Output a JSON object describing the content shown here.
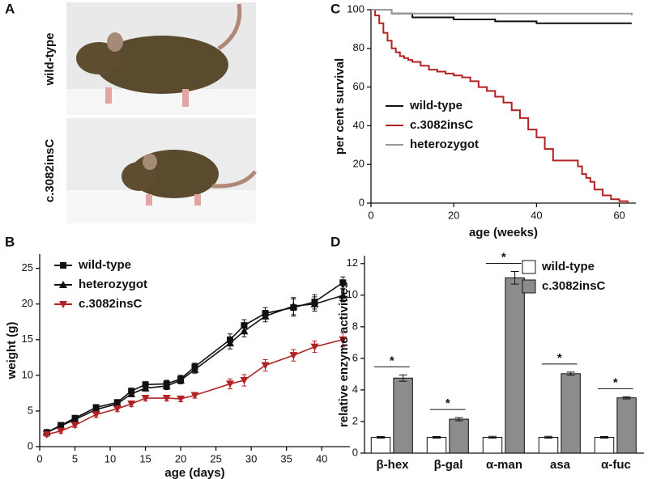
{
  "panel_a": {
    "panel": "A",
    "labels": [
      "wild-type",
      "c.3082insC"
    ]
  },
  "chart_data": [
    {
      "panel": "B",
      "type": "line",
      "x_label": "age (days)",
      "y_label": "weight (g)",
      "xlim": [
        0,
        44
      ],
      "ylim": [
        0,
        27
      ],
      "xticks": [
        0,
        5,
        10,
        15,
        20,
        25,
        30,
        35,
        40
      ],
      "yticks": [
        0,
        5,
        10,
        15,
        20,
        25
      ],
      "legend": "upper left",
      "x": [
        1,
        3,
        5,
        8,
        11,
        13,
        15,
        18,
        20,
        22,
        27,
        29,
        32,
        36,
        39,
        43
      ],
      "series": [
        {
          "name": "wild-type",
          "color": "#111111",
          "marker": "square",
          "values": [
            2,
            3,
            4,
            5.5,
            6.2,
            7.8,
            8.7,
            8.8,
            9.5,
            11.2,
            15,
            17,
            18.7,
            19.5,
            20.3,
            23
          ],
          "errors": [
            0.3,
            0.3,
            0.3,
            0.4,
            0.4,
            0.4,
            0.4,
            0.5,
            0.5,
            0.5,
            0.8,
            0.8,
            0.8,
            1.2,
            1,
            0.8
          ]
        },
        {
          "name": "heterozygot",
          "color": "#111111",
          "marker": "triangle",
          "values": [
            2,
            2.9,
            3.8,
            5.2,
            6,
            7.4,
            8.2,
            8.5,
            9.3,
            10.8,
            14.5,
            16.2,
            18.3,
            19.7,
            20,
            21.2
          ],
          "errors": [
            0.3,
            0.3,
            0.3,
            0.4,
            0.4,
            0.4,
            0.4,
            0.5,
            0.5,
            0.5,
            0.8,
            0.8,
            0.8,
            1.2,
            1,
            0.9
          ]
        },
        {
          "name": "c.3082insC",
          "color": "#b22222",
          "marker": "triangle-down",
          "values": [
            1.7,
            2.2,
            3,
            4.5,
            5.3,
            6,
            6.8,
            6.8,
            6.7,
            7.2,
            8.8,
            9.3,
            11.4,
            12.8,
            14,
            15
          ],
          "errors": [
            0.3,
            0.3,
            0.3,
            0.4,
            0.4,
            0.4,
            0.4,
            0.4,
            0.4,
            0.4,
            0.7,
            0.8,
            0.8,
            0.8,
            0.8,
            1
          ]
        }
      ]
    },
    {
      "panel": "C",
      "type": "line",
      "step": true,
      "x_label": "age (weeks)",
      "y_label": "per cent survival",
      "xlim": [
        0,
        64
      ],
      "ylim": [
        0,
        100
      ],
      "xticks": [
        0,
        20,
        40,
        60
      ],
      "yticks": [
        0,
        20,
        40,
        60,
        80,
        100
      ],
      "legend": "lower left",
      "series": [
        {
          "name": "wild-type",
          "color": "#111111",
          "x": [
            0,
            5,
            10,
            20,
            30,
            40,
            50,
            63
          ],
          "values": [
            100,
            98,
            96,
            95,
            94,
            93,
            93,
            93
          ]
        },
        {
          "name": "c.3082insC",
          "color": "#b22222",
          "x": [
            0,
            1,
            2,
            3,
            4,
            5,
            6,
            7,
            8,
            9,
            10,
            12,
            14,
            16,
            18,
            20,
            22,
            24,
            26,
            28,
            30,
            32,
            34,
            36,
            38,
            40,
            42,
            44,
            46,
            48,
            50,
            51,
            52,
            53,
            54,
            56,
            58,
            60,
            62
          ],
          "values": [
            100,
            97,
            93,
            88,
            84,
            80,
            78,
            76,
            75,
            74,
            73,
            71,
            69,
            68,
            67,
            66,
            65,
            63,
            60,
            58,
            55,
            52,
            48,
            44,
            38,
            34,
            28,
            22,
            22,
            22,
            19,
            15,
            13,
            11,
            7,
            4,
            2,
            1,
            0
          ]
        },
        {
          "name": "heterozygot",
          "color": "#999999",
          "x": [
            0,
            5,
            63
          ],
          "values": [
            100,
            98,
            97
          ]
        }
      ]
    },
    {
      "panel": "D",
      "type": "bar",
      "y_label": "relative enzyme activities",
      "ylim": [
        0,
        12.5
      ],
      "yticks": [
        0,
        2,
        4,
        6,
        8,
        10,
        12
      ],
      "legend": "upper right",
      "categories": [
        "β-hex",
        "β-gal",
        "α-man",
        "asa",
        "α-fuc"
      ],
      "annotations": [
        "*",
        "*",
        "*",
        "*",
        "*"
      ],
      "series": [
        {
          "name": "wild-type",
          "color": "#ffffff",
          "values": [
            1,
            1,
            1,
            1,
            1
          ],
          "errors": [
            0.05,
            0.05,
            0.06,
            0.06,
            0.05
          ]
        },
        {
          "name": "c.3082insC",
          "color": "#8c8c8c",
          "values": [
            4.75,
            2.15,
            11.1,
            5.03,
            3.5
          ],
          "errors": [
            0.2,
            0.1,
            0.4,
            0.1,
            0.07
          ]
        }
      ]
    }
  ]
}
